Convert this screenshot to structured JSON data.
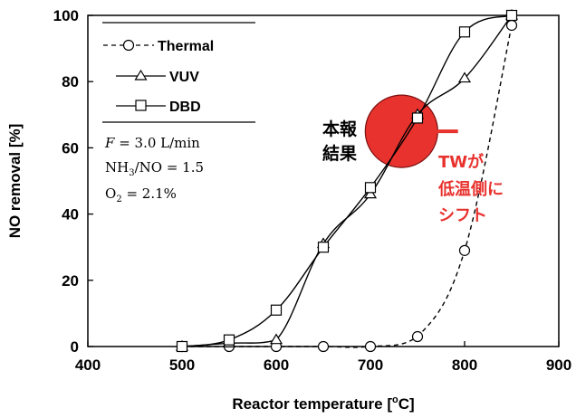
{
  "chart_data": {
    "type": "line",
    "xlabel_main": "Reactor temperature [",
    "xlabel_sup": "o",
    "xlabel_end": "C]",
    "ylabel": "NO removal [%]",
    "xlim": [
      400,
      900
    ],
    "ylim": [
      0,
      100
    ],
    "xticks": [
      "400",
      "500",
      "600",
      "700",
      "800",
      "900"
    ],
    "yticks": [
      "0",
      "20",
      "40",
      "60",
      "80",
      "100"
    ],
    "grid": false,
    "legend_placement": "top-left",
    "series": [
      {
        "name": "Thermal",
        "marker": "circle",
        "line": "dashed",
        "x": [
          500,
          550,
          600,
          650,
          700,
          750,
          800,
          850
        ],
        "y": [
          0,
          0,
          0,
          0,
          0,
          3,
          29,
          97
        ]
      },
      {
        "name": "VUV",
        "marker": "triangle",
        "line": "solid",
        "x": [
          500,
          550,
          600,
          650,
          700,
          750,
          800,
          850
        ],
        "y": [
          0,
          1,
          2,
          31,
          46,
          70,
          81,
          100
        ]
      },
      {
        "name": "DBD",
        "marker": "square",
        "line": "solid",
        "x": [
          500,
          550,
          600,
          650,
          700,
          750,
          800,
          850
        ],
        "y": [
          0,
          2,
          11,
          30,
          48,
          69,
          95,
          100
        ]
      }
    ],
    "conditions": [
      "F = 3.0 L/min",
      "NH3/NO = 1.5",
      "O2 = 2.1%"
    ],
    "annotations": {
      "result_label_line1": "本報",
      "result_label_line2": "結果",
      "highlight_center": [
        733,
        65
      ],
      "arrow_from": [
        793,
        65
      ],
      "arrow_to": [
        744,
        65
      ],
      "shift_line1": "TWが",
      "shift_line2": "低温側に",
      "shift_line3": "シフト",
      "highlight_color": "#e8322e"
    }
  }
}
